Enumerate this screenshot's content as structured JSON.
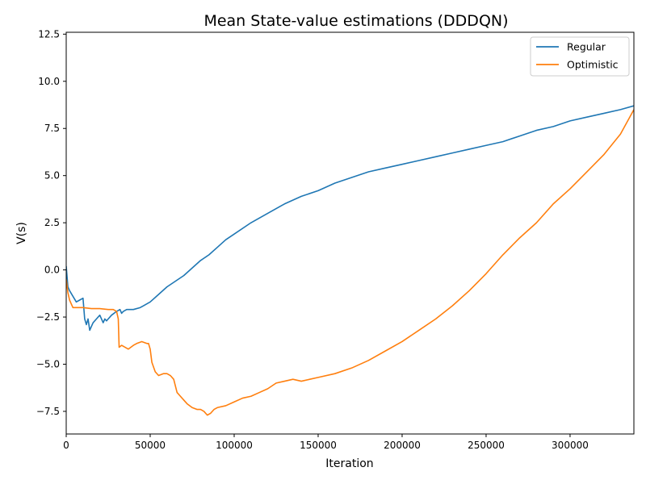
{
  "chart_data": {
    "type": "line",
    "title": "Mean State-value estimations (DDDQN)",
    "xlabel": "Iteration",
    "ylabel": "V(s)",
    "xlim": [
      0,
      338000
    ],
    "ylim": [
      -8.7,
      12.6
    ],
    "xticks": [
      0,
      50000,
      100000,
      150000,
      200000,
      250000,
      300000
    ],
    "yticks": [
      -7.5,
      -5.0,
      -2.5,
      0.0,
      2.5,
      5.0,
      7.5,
      10.0,
      12.5
    ],
    "xtick_labels": [
      "0",
      "50000",
      "100000",
      "150000",
      "200000",
      "250000",
      "300000"
    ],
    "ytick_labels": [
      "−7.5",
      "−5.0",
      "−2.5",
      "0.0",
      "2.5",
      "5.0",
      "7.5",
      "10.0",
      "12.5"
    ],
    "grid": false,
    "legend_position": "top-right",
    "series": [
      {
        "name": "Regular",
        "color": "#1f77b4",
        "x": [
          0,
          1000,
          2000,
          4000,
          6000,
          8000,
          10000,
          11000,
          12000,
          13000,
          14000,
          15000,
          16000,
          18000,
          20000,
          22000,
          23000,
          24000,
          25000,
          27000,
          30000,
          32000,
          33000,
          34000,
          36000,
          40000,
          44000,
          46000,
          50000,
          55000,
          60000,
          65000,
          70000,
          75000,
          80000,
          85000,
          90000,
          95000,
          100000,
          110000,
          120000,
          130000,
          140000,
          150000,
          160000,
          170000,
          180000,
          190000,
          200000,
          210000,
          220000,
          230000,
          240000,
          250000,
          260000,
          270000,
          280000,
          290000,
          300000,
          310000,
          320000,
          330000,
          338000
        ],
        "y": [
          0.2,
          -0.9,
          -1.1,
          -1.4,
          -1.7,
          -1.6,
          -1.5,
          -2.6,
          -2.9,
          -2.6,
          -3.2,
          -3.0,
          -2.8,
          -2.6,
          -2.4,
          -2.8,
          -2.6,
          -2.7,
          -2.6,
          -2.4,
          -2.2,
          -2.1,
          -2.3,
          -2.2,
          -2.1,
          -2.1,
          -2.0,
          -1.9,
          -1.7,
          -1.3,
          -0.9,
          -0.6,
          -0.3,
          0.1,
          0.5,
          0.8,
          1.2,
          1.6,
          1.9,
          2.5,
          3.0,
          3.5,
          3.9,
          4.2,
          4.6,
          4.9,
          5.2,
          5.4,
          5.6,
          5.8,
          6.0,
          6.2,
          6.4,
          6.6,
          6.8,
          7.1,
          7.4,
          7.6,
          7.9,
          8.1,
          8.3,
          8.5,
          8.7
        ]
      },
      {
        "name": "Optimistic",
        "color": "#ff7f0e",
        "x": [
          0,
          1000,
          2000,
          3000,
          4000,
          6000,
          8000,
          10000,
          15000,
          20000,
          25000,
          28000,
          30000,
          31000,
          31500,
          33000,
          35000,
          37000,
          40000,
          42000,
          45000,
          48000,
          49000,
          50000,
          51000,
          53000,
          55000,
          58000,
          60000,
          62000,
          64000,
          66000,
          68000,
          70000,
          72000,
          75000,
          78000,
          80000,
          82000,
          84000,
          86000,
          88000,
          90000,
          95000,
          100000,
          105000,
          110000,
          115000,
          120000,
          125000,
          130000,
          135000,
          140000,
          145000,
          150000,
          160000,
          170000,
          180000,
          190000,
          200000,
          210000,
          220000,
          230000,
          240000,
          250000,
          260000,
          270000,
          280000,
          290000,
          300000,
          310000,
          320000,
          330000,
          338000
        ],
        "y": [
          -0.5,
          -1.2,
          -1.6,
          -1.8,
          -2.0,
          -2.0,
          -2.0,
          -2.0,
          -2.05,
          -2.05,
          -2.1,
          -2.1,
          -2.2,
          -2.6,
          -4.1,
          -4.0,
          -4.1,
          -4.2,
          -4.0,
          -3.9,
          -3.8,
          -3.9,
          -3.9,
          -4.2,
          -4.9,
          -5.4,
          -5.6,
          -5.5,
          -5.5,
          -5.6,
          -5.8,
          -6.5,
          -6.7,
          -6.9,
          -7.1,
          -7.3,
          -7.4,
          -7.4,
          -7.5,
          -7.7,
          -7.6,
          -7.4,
          -7.3,
          -7.2,
          -7.0,
          -6.8,
          -6.7,
          -6.5,
          -6.3,
          -6.0,
          -5.9,
          -5.8,
          -5.9,
          -5.8,
          -5.7,
          -5.5,
          -5.2,
          -4.8,
          -4.3,
          -3.8,
          -3.2,
          -2.6,
          -1.9,
          -1.1,
          -0.2,
          0.8,
          1.7,
          2.5,
          3.5,
          4.3,
          5.2,
          6.1,
          7.2,
          8.5
        ]
      }
    ]
  }
}
